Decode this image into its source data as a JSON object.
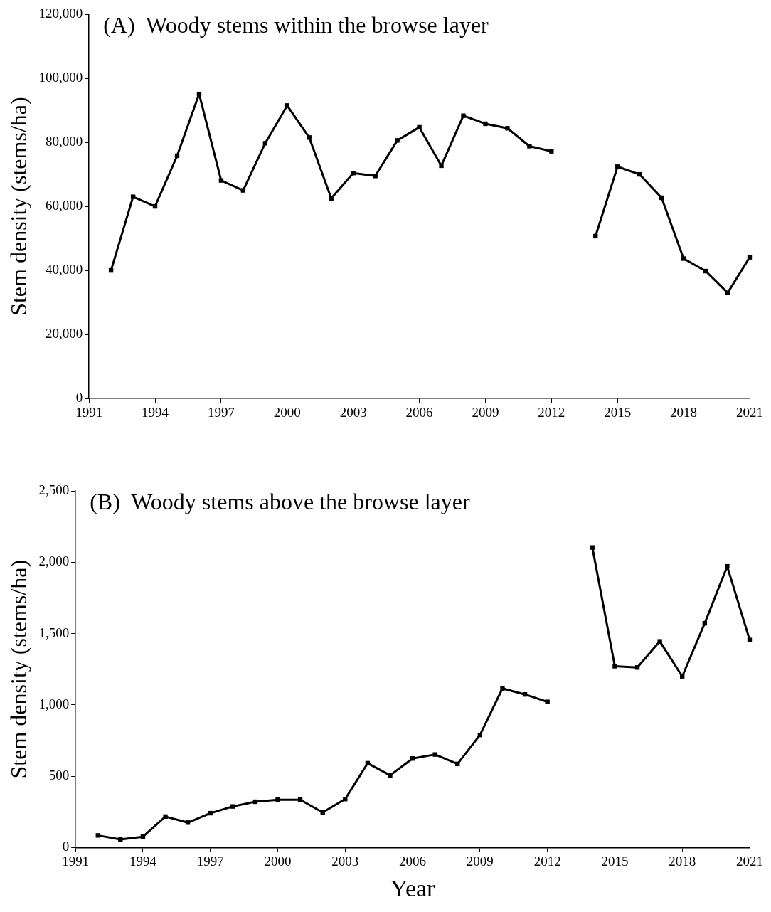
{
  "chart_data": [
    {
      "type": "line",
      "title": "(A)  Woody stems within the browse layer",
      "ylabel": "Stem density (stems/ha)",
      "x": [
        1992,
        1993,
        1994,
        1995,
        1996,
        1997,
        1998,
        1999,
        2000,
        2001,
        2002,
        2003,
        2004,
        2005,
        2006,
        2007,
        2008,
        2009,
        2010,
        2011,
        2012,
        2013,
        2014,
        2015,
        2016,
        2017,
        2018,
        2019,
        2020,
        2021
      ],
      "series": [
        {
          "color": "#000000",
          "values": [
            40000,
            63000,
            60000,
            75800,
            95100,
            68100,
            65000,
            79700,
            91500,
            81500,
            62500,
            70400,
            69500,
            80600,
            84700,
            72700,
            88300,
            85800,
            84400,
            78800,
            77200,
            null,
            50700,
            72400,
            70000,
            62700,
            43700,
            39800,
            33000,
            44100
          ]
        }
      ],
      "xlim": [
        1991,
        2021
      ],
      "xticks": [
        1991,
        1994,
        1997,
        2000,
        2003,
        2006,
        2009,
        2012,
        2015,
        2018,
        2021
      ],
      "ylim": [
        0,
        120000
      ],
      "yticks": [
        {
          "value": 0,
          "label": "0"
        },
        {
          "value": 20000,
          "label": "20,000"
        },
        {
          "value": 40000,
          "label": "40,000"
        },
        {
          "value": 60000,
          "label": "60,000"
        },
        {
          "value": 80000,
          "label": "80,000"
        },
        {
          "value": 100000,
          "label": "100,000"
        },
        {
          "value": 120000,
          "label": "120,000"
        }
      ],
      "grid": false,
      "legend": false,
      "marker": "square",
      "line_style": "solid"
    },
    {
      "type": "line",
      "title": "(B)  Woody stems above the browse layer",
      "xlabel": "Year",
      "ylabel": "Stem density (stems/ha)",
      "x": [
        1992,
        1993,
        1994,
        1995,
        1996,
        1997,
        1998,
        1999,
        2000,
        2001,
        2002,
        2003,
        2004,
        2005,
        2006,
        2007,
        2008,
        2009,
        2010,
        2011,
        2012,
        2013,
        2014,
        2015,
        2016,
        2017,
        2018,
        2019,
        2020,
        2021
      ],
      "series": [
        {
          "color": "#000000",
          "values": [
            85,
            57,
            76,
            217,
            175,
            241,
            288,
            321,
            335,
            335,
            246,
            340,
            591,
            506,
            624,
            652,
            586,
            789,
            1115,
            1073,
            1021,
            null,
            2103,
            1271,
            1262,
            1445,
            1200,
            1572,
            1971,
            1455
          ]
        }
      ],
      "xlim": [
        1991,
        2021
      ],
      "xticks": [
        1991,
        1994,
        1997,
        2000,
        2003,
        2006,
        2009,
        2012,
        2015,
        2018,
        2021
      ],
      "ylim": [
        0,
        2500
      ],
      "yticks": [
        {
          "value": 0,
          "label": "0"
        },
        {
          "value": 500,
          "label": "500"
        },
        {
          "value": 1000,
          "label": "1,000"
        },
        {
          "value": 1500,
          "label": "1,500"
        },
        {
          "value": 2000,
          "label": "2,000"
        },
        {
          "value": 2500,
          "label": "2,500"
        }
      ],
      "grid": false,
      "legend": false,
      "marker": "square",
      "line_style": "solid"
    }
  ]
}
